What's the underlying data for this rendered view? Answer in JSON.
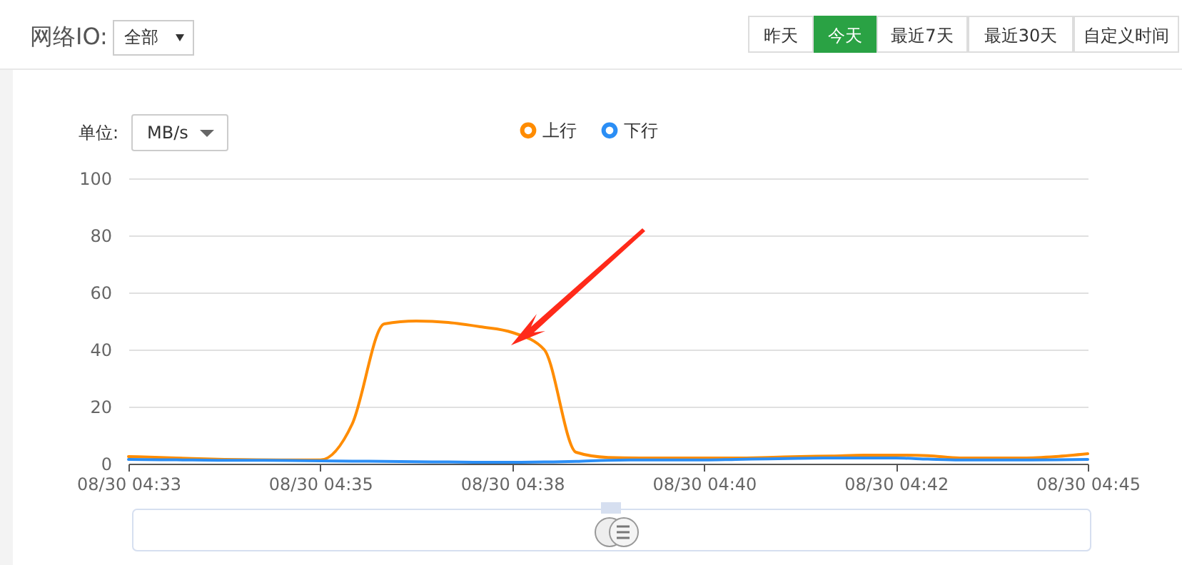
{
  "chart_data": {
    "type": "line",
    "title": "网络IO:",
    "annotations": [
      "全部",
      "昨天",
      "今天",
      "最近7天",
      "最近30天",
      "自定义时间",
      "单位:",
      "MB/s"
    ],
    "categories": [
      "08/30 04:33",
      null,
      null,
      null,
      null,
      null,
      "08/30 04:35",
      null,
      null,
      null,
      null,
      null,
      "08/30 04:38",
      null,
      null,
      null,
      null,
      null,
      "08/30 04:40",
      null,
      null,
      null,
      null,
      null,
      "08/30 04:42",
      null,
      null,
      null,
      null,
      null,
      "08/30 04:45"
    ],
    "series": [
      {
        "name": "上行",
        "color": "#ff8c00",
        "values": [
          2.5,
          2.2,
          1.8,
          1.5,
          1.4,
          1.3,
          1.3,
          14,
          49,
          50,
          49.5,
          48,
          46,
          40,
          4,
          2.2,
          2,
          2,
          2,
          2,
          2.2,
          2.5,
          2.7,
          3,
          3,
          2.8,
          2,
          2,
          2,
          2.5,
          3.5
        ]
      },
      {
        "name": "下行",
        "color": "#2b8ef5",
        "values": [
          1.5,
          1.4,
          1.3,
          1.2,
          1.2,
          1.1,
          1,
          0.9,
          0.8,
          0.7,
          0.6,
          0.5,
          0.5,
          0.6,
          0.8,
          1.2,
          1.3,
          1.3,
          1.3,
          1.5,
          1.7,
          1.9,
          2,
          2,
          2,
          1.6,
          1.3,
          1.3,
          1.3,
          1.4,
          1.5
        ]
      }
    ],
    "ylim": [
      0,
      100
    ],
    "yticks": [
      0,
      20,
      40,
      60,
      80,
      100
    ],
    "grid": "y",
    "legend": "top"
  }
}
